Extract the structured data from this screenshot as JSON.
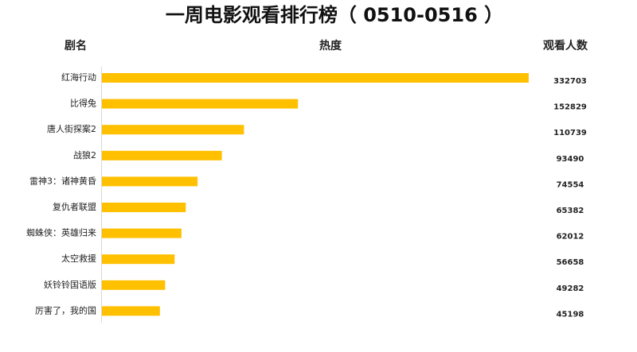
{
  "chart_data": {
    "type": "bar",
    "orientation": "horizontal",
    "title": "一周电影观看排行榜（ 0510-0516 ）",
    "headers": [
      "剧名",
      "热度",
      "观看人数"
    ],
    "categories": [
      "红海行动",
      "比得兔",
      "唐人街探案2",
      "战狼2",
      "雷神3：诸神黄昏",
      "复仇者联盟",
      "蜘蛛侠：英雄归来",
      "太空救援",
      "妖铃铃国语版",
      "厉害了，我的国"
    ],
    "values": [
      332703,
      152829,
      110739,
      93490,
      74554,
      65382,
      62012,
      56658,
      49282,
      45198
    ],
    "color": "#ffc000",
    "header_color": "#f5a300"
  }
}
